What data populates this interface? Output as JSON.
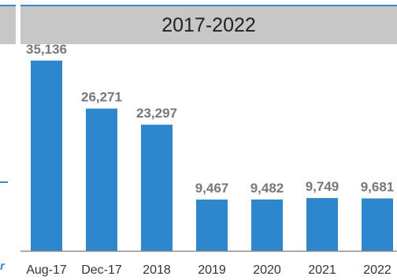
{
  "header": {
    "title": "2017-2022"
  },
  "left_fragment": "r",
  "colors": {
    "bar": "#2e86cc",
    "axis": "#8a8a8a",
    "header_bg": "#c7c7c7",
    "accent": "#3a86c8"
  },
  "chart_data": {
    "type": "bar",
    "title": "2017-2022",
    "categories": [
      "Aug-17",
      "Dec-17",
      "2018",
      "2019",
      "2020",
      "2021",
      "2022"
    ],
    "values": [
      35136,
      26271,
      23297,
      9467,
      9482,
      9749,
      9681
    ],
    "value_labels": [
      "35,136",
      "26,271",
      "23,297",
      "9,467",
      "9,482",
      "9,749",
      "9,681"
    ],
    "xlabel": "",
    "ylabel": "",
    "ylim": [
      0,
      37000
    ],
    "grid": false,
    "legend": "none"
  }
}
